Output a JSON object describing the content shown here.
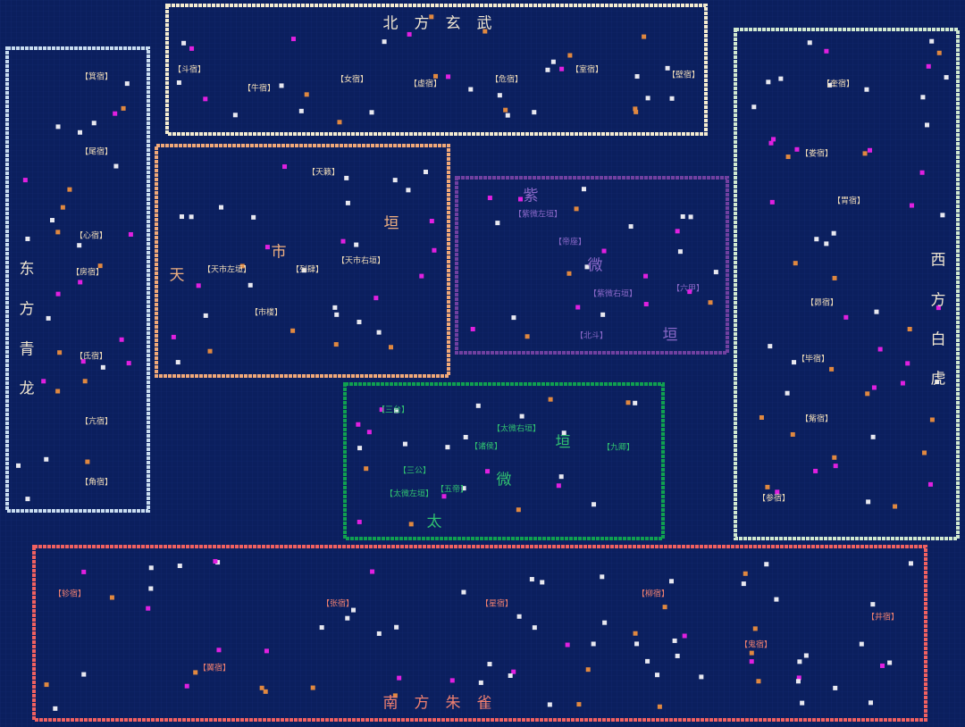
{
  "north": {
    "title": [
      "北",
      "方",
      "玄",
      "武"
    ],
    "labels": [
      "【斗宿】",
      "【牛宿】",
      "【女宿】",
      "【虚宿】",
      "【危宿】",
      "【室宿】",
      "【壁宿】"
    ]
  },
  "east": {
    "title": [
      "东",
      "方",
      "青",
      "龙"
    ],
    "labels": [
      "【箕宿】",
      "【尾宿】",
      "【心宿】",
      "【房宿】",
      "【氐宿】",
      "【亢宿】",
      "【角宿】"
    ]
  },
  "west": {
    "title": [
      "西",
      "方",
      "白",
      "虎"
    ],
    "labels": [
      "【奎宿】",
      "【娄宿】",
      "【胃宿】",
      "【昴宿】",
      "【毕宿】",
      "【觜宿】",
      "【参宿】"
    ]
  },
  "south": {
    "title": [
      "南",
      "方",
      "朱",
      "雀"
    ],
    "labels": [
      "【轸宿】",
      "【翼宿】",
      "【张宿】",
      "【星宿】",
      "【柳宿】",
      "【鬼宿】",
      "【井宿】"
    ]
  },
  "tianshi": {
    "title": [
      "天",
      "市",
      "垣"
    ],
    "labels": [
      "【天籁】",
      "【天市左垣】",
      "【列肆】",
      "【天市右垣】",
      "【市楼】"
    ]
  },
  "ziwei": {
    "title": [
      "紫",
      "微",
      "垣"
    ],
    "labels": [
      "【紫微左垣】",
      "【帝座】",
      "【紫微右垣】",
      "【六甲】",
      "【北斗】"
    ]
  },
  "taiwei": {
    "title": [
      "太",
      "微",
      "垣"
    ],
    "labels": [
      "【三台】",
      "【太微右垣】",
      "【诸侯】",
      "【九卿】",
      "【三公】",
      "【五帝】",
      "【太微左垣】"
    ]
  }
}
